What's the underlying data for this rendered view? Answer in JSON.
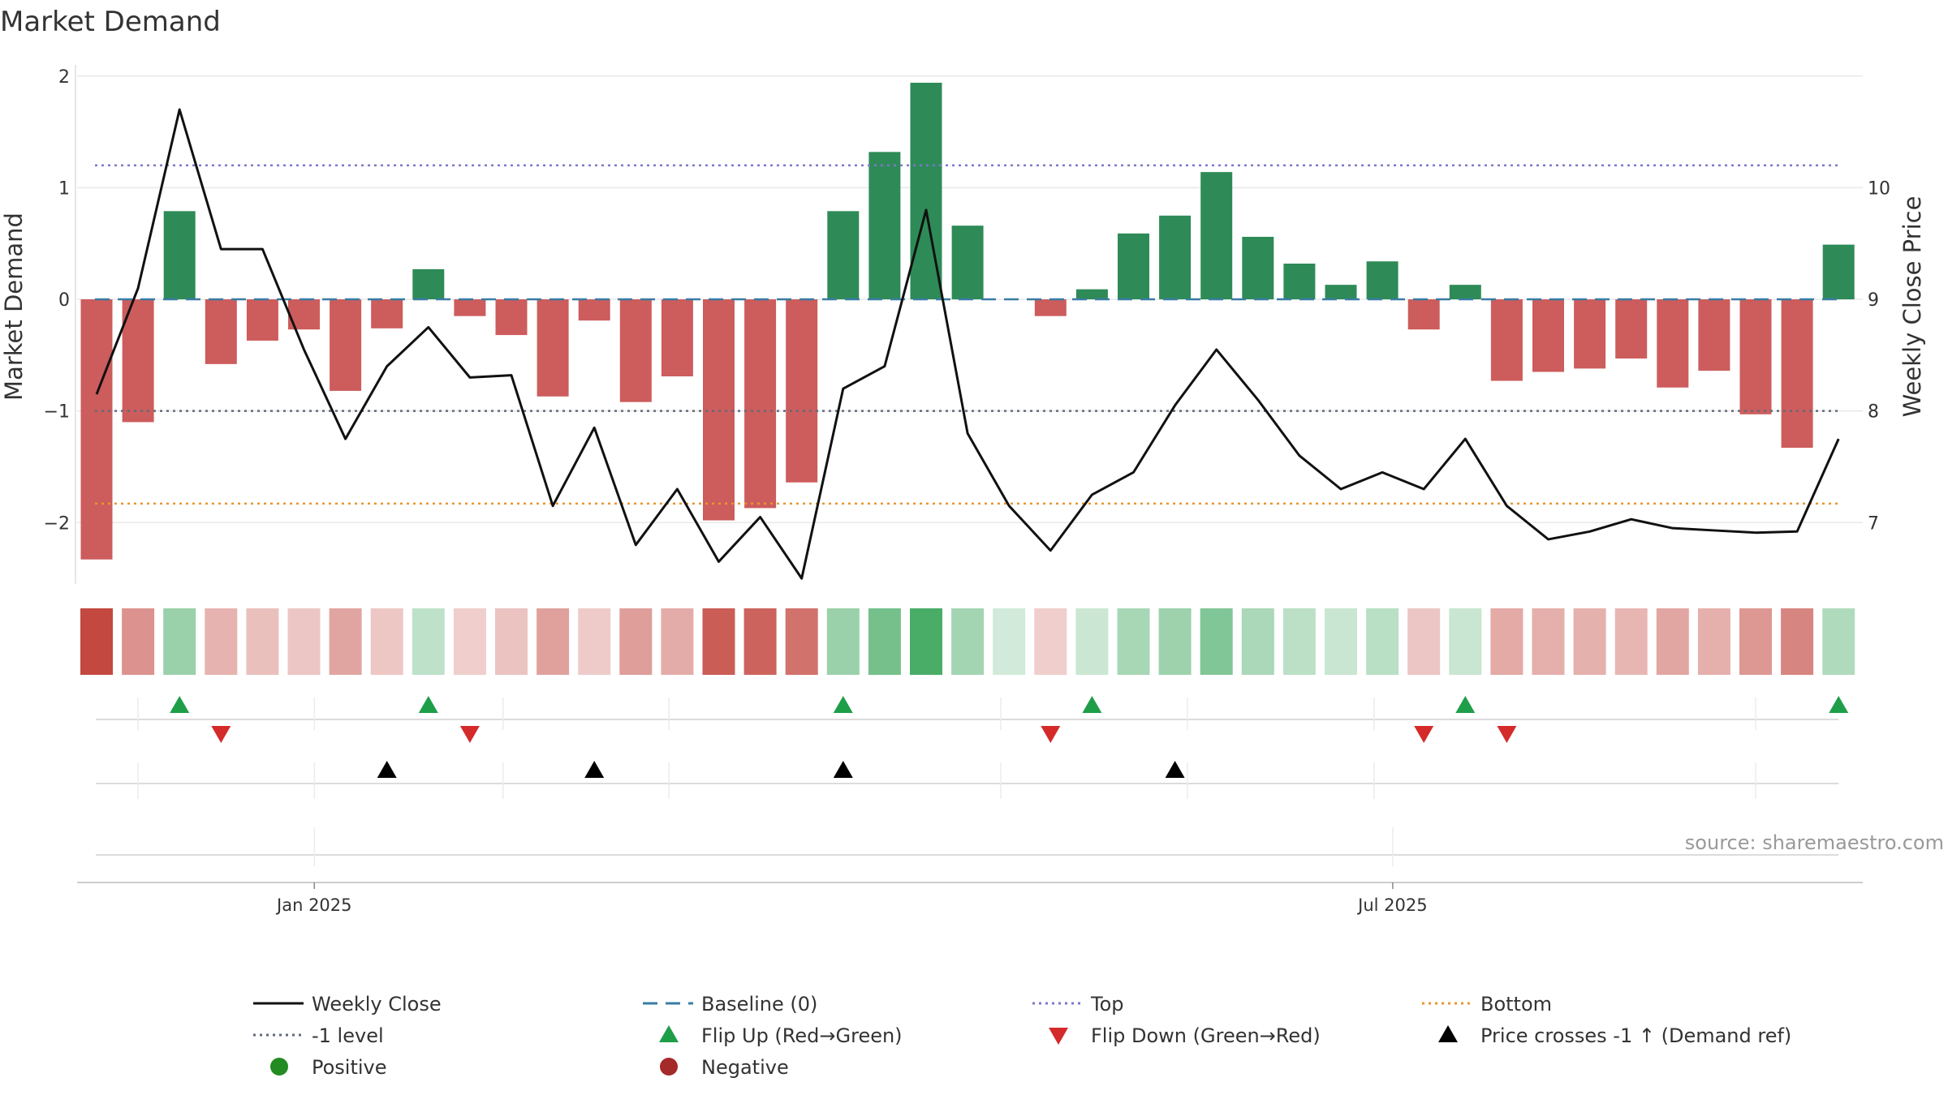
{
  "chart_data": {
    "type": "bar",
    "title": "Market Demand",
    "ylabel": "Market Demand",
    "y2label": "Weekly Close Price",
    "ylim": [
      -2.55,
      2.1
    ],
    "y2lim": [
      6.45,
      11.1
    ],
    "yticks": [
      {
        "value": 2,
        "label": "2"
      },
      {
        "value": 1,
        "label": "1"
      },
      {
        "value": 0,
        "label": "0"
      },
      {
        "value": -1,
        "label": "−1"
      },
      {
        "value": -2,
        "label": "−2"
      }
    ],
    "y2ticks": [
      {
        "value": 10,
        "label": "10"
      },
      {
        "value": 9,
        "label": "9"
      },
      {
        "value": 8,
        "label": "8"
      },
      {
        "value": 7,
        "label": "7"
      }
    ],
    "date_ticks": [
      {
        "index": 5.25,
        "label": "Jan 2025"
      },
      {
        "index": 31.25,
        "label": "Jul 2025"
      }
    ],
    "source": "source: sharemaestro.com",
    "reference_lines": {
      "baseline": 0,
      "top": 1.2,
      "minus_one": -1,
      "bottom": -1.83
    },
    "demand": [
      -2.33,
      -1.1,
      0.79,
      -0.58,
      -0.37,
      -0.27,
      -0.82,
      -0.26,
      0.27,
      -0.15,
      -0.32,
      -0.87,
      -0.19,
      -0.92,
      -0.69,
      -1.98,
      -1.87,
      -1.64,
      0.79,
      1.32,
      1.94,
      0.66,
      0.0,
      -0.15,
      0.09,
      0.59,
      0.75,
      1.14,
      0.56,
      0.32,
      0.13,
      0.34,
      -0.27,
      0.13,
      -0.73,
      -0.65,
      -0.62,
      -0.53,
      -0.79,
      -0.64,
      -1.03,
      -1.33,
      0.49
    ],
    "weekly_close": [
      8.15,
      9.1,
      10.7,
      9.45,
      9.45,
      8.55,
      7.75,
      8.4,
      8.75,
      8.3,
      8.32,
      7.15,
      7.85,
      6.8,
      7.3,
      6.65,
      7.05,
      6.5,
      8.2,
      8.4,
      9.8,
      7.8,
      7.15,
      6.75,
      7.25,
      7.45,
      8.05,
      8.55,
      8.1,
      7.6,
      7.3,
      7.45,
      7.3,
      7.75,
      7.15,
      6.85,
      6.92,
      7.03,
      6.95,
      6.93,
      6.91,
      6.92,
      7.75
    ],
    "flip_up_indices": [
      2,
      8,
      18,
      24,
      33,
      42
    ],
    "flip_down_indices": [
      3,
      9,
      23,
      32,
      34
    ],
    "price_cross_indices": [
      7,
      12,
      18,
      26
    ],
    "colors": {
      "positive_bar": "#2e8b57",
      "negative_bar": "#cd5c5c",
      "weekly_close": "#111111",
      "baseline": "#3a7ca5",
      "top": "#7b78c9",
      "minus_one": "#606a7a",
      "bottom": "#e8962e",
      "flip_up": "#1f9e4a",
      "flip_down": "#d42a2a",
      "price_cross": "#000000",
      "positive_dot": "#228b22",
      "negative_dot": "#a52a2a"
    },
    "legend": [
      {
        "label": "Weekly Close",
        "kind": "solid",
        "color": "#111111"
      },
      {
        "label": "Baseline (0)",
        "kind": "dashed",
        "color": "#3a7ca5"
      },
      {
        "label": "Top",
        "kind": "dotted",
        "color": "#7b78c9"
      },
      {
        "label": "Bottom",
        "kind": "dotted",
        "color": "#e8962e"
      },
      {
        "label": "-1 level",
        "kind": "dotted",
        "color": "#606a7a"
      },
      {
        "label": "Flip Up (Red→Green)",
        "kind": "tri-up",
        "color": "#1f9e4a"
      },
      {
        "label": "Flip Down (Green→Red)",
        "kind": "tri-down",
        "color": "#d42a2a"
      },
      {
        "label": "Price crosses -1 ↑ (Demand ref)",
        "kind": "tri-up",
        "color": "#000000"
      },
      {
        "label": "Positive",
        "kind": "dot",
        "color": "#228b22"
      },
      {
        "label": "Negative",
        "kind": "dot",
        "color": "#a52a2a"
      }
    ]
  }
}
